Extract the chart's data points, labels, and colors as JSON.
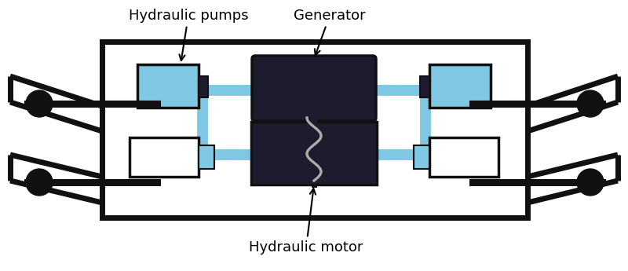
{
  "bg_color": "#ffffff",
  "box_dark": "#1c1c2e",
  "blue": "#7ec8e3",
  "black": "#111111",
  "gray_coil": "#aaaaaa",
  "title_pumps": "Hydraulic pumps",
  "title_gen": "Generator",
  "title_motor": "Hydraulic motor",
  "figsize": [
    8.0,
    3.45
  ],
  "dpi": 100,
  "lw_thick": 5,
  "lw_med": 2.5,
  "blue_lw": 10,
  "label_fs": 13
}
